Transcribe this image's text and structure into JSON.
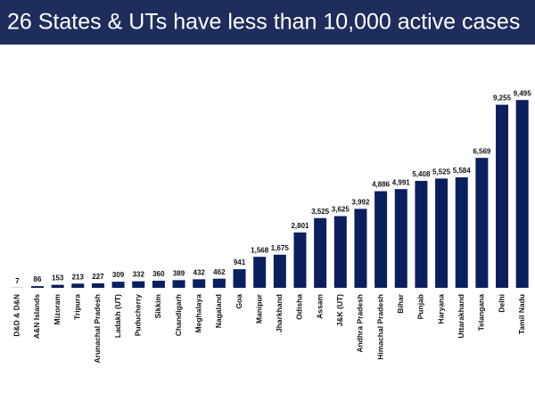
{
  "chart_data": {
    "type": "bar",
    "title": "26 States & UTs have less than 10,000 active cases",
    "categories": [
      "D&D & D&N",
      "A&N Islands",
      "Mizoram",
      "Tripura",
      "Arunachal Pradesh",
      "Ladakh (UT)",
      "Puducherry",
      "Sikkim",
      "Chandigarh",
      "Meghalaya",
      "Nagaland",
      "Goa",
      "Manipur",
      "Jharkhand",
      "Odisha",
      "Assam",
      "J&K (UT)",
      "Andhra Pradesh",
      "Himachal Pradesh",
      "Bihar",
      "Punjab",
      "Haryana",
      "Uttarakhand",
      "Telangana",
      "Delhi",
      "Tamil Nadu"
    ],
    "values": [
      7,
      86,
      153,
      213,
      227,
      309,
      332,
      360,
      389,
      432,
      462,
      941,
      1568,
      1675,
      2801,
      3525,
      3625,
      3992,
      4886,
      4991,
      5408,
      5525,
      5584,
      6569,
      9255,
      9495
    ],
    "value_labels": [
      "7",
      "86",
      "153",
      "213",
      "227",
      "309",
      "332",
      "360",
      "389",
      "432",
      "462",
      "941",
      "1,568",
      "1,675",
      "2,801",
      "3,525",
      "3,625",
      "3,992",
      "4,886",
      "4,991",
      "5,408",
      "5,525",
      "5,584",
      "6,569",
      "9,255",
      "9,495"
    ],
    "color": "#0b1f5e",
    "ylim": [
      0,
      10000
    ]
  }
}
